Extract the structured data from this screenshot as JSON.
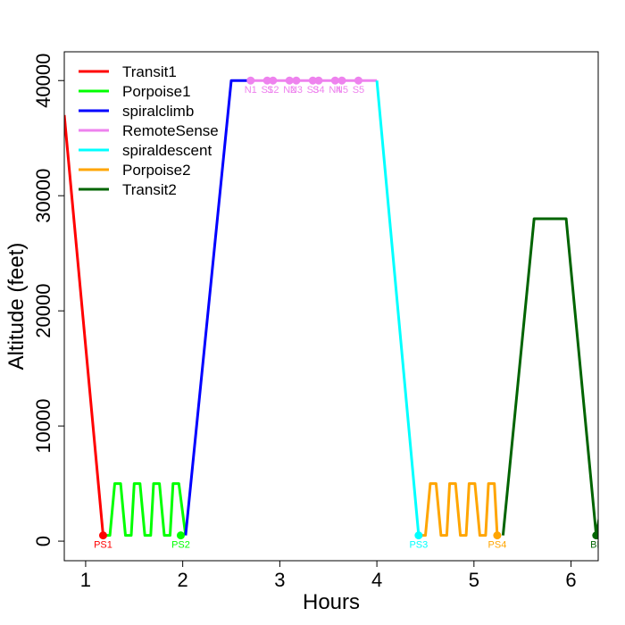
{
  "chart_data": {
    "type": "line",
    "title": "",
    "xlabel": "Hours",
    "ylabel": "Altitude (feet)",
    "xlim": [
      0.78,
      6.28
    ],
    "ylim": [
      -1700,
      42500
    ],
    "xticks": [
      1,
      2,
      3,
      4,
      5,
      6
    ],
    "xtick_labels": [
      "1",
      "2",
      "3",
      "4",
      "5",
      "6"
    ],
    "yticks": [
      0,
      10000,
      20000,
      30000,
      40000
    ],
    "ytick_labels": [
      "0",
      "10000",
      "20000",
      "30000",
      "40000"
    ],
    "legend_position": "top-left",
    "series": [
      {
        "name": "Transit1",
        "color": "#ff0000",
        "x": [
          0.78,
          1.18
        ],
        "y": [
          37000,
          500
        ]
      },
      {
        "name": "Porpoise1",
        "color": "#00ff00",
        "x": [
          1.18,
          1.25,
          1.3,
          1.36,
          1.41,
          1.47,
          1.5,
          1.56,
          1.61,
          1.67,
          1.7,
          1.76,
          1.81,
          1.87,
          1.9,
          1.96,
          2.03
        ],
        "y": [
          500,
          500,
          5000,
          5000,
          500,
          500,
          5000,
          5000,
          500,
          500,
          5000,
          5000,
          500,
          500,
          5000,
          5000,
          500
        ]
      },
      {
        "name": "spiralclimb",
        "color": "#0000ff",
        "x": [
          2.03,
          2.5,
          2.7
        ],
        "y": [
          500,
          40000,
          40000
        ]
      },
      {
        "name": "RemoteSense",
        "color": "#ee82ee",
        "x": [
          2.7,
          4.0
        ],
        "y": [
          40000,
          40000
        ]
      },
      {
        "name": "spiraldescent",
        "color": "#00ffff",
        "x": [
          4.0,
          4.43
        ],
        "y": [
          40000,
          500
        ]
      },
      {
        "name": "Porpoise2",
        "color": "#ffa500",
        "x": [
          4.43,
          4.5,
          4.55,
          4.61,
          4.66,
          4.72,
          4.75,
          4.81,
          4.86,
          4.92,
          4.95,
          5.01,
          5.06,
          5.12,
          5.15,
          5.21,
          5.24
        ],
        "y": [
          500,
          500,
          5000,
          5000,
          500,
          500,
          5000,
          5000,
          500,
          500,
          5000,
          5000,
          500,
          500,
          5000,
          5000,
          500
        ]
      },
      {
        "name": "Transit2",
        "color": "#006400",
        "x": [
          5.3,
          5.62,
          5.95,
          6.26,
          6.3
        ],
        "y": [
          500,
          28000,
          28000,
          500,
          2500
        ]
      }
    ],
    "waypoints": [
      {
        "label": "PS1",
        "x": 1.18,
        "y": 500,
        "color": "#ff0000",
        "label_color": "#ff0000"
      },
      {
        "label": "PS2",
        "x": 1.98,
        "y": 500,
        "color": "#00ff00",
        "label_color": "#00ff00"
      },
      {
        "label": "PS3",
        "x": 4.43,
        "y": 500,
        "color": "#00ffff",
        "label_color": "#00ffff"
      },
      {
        "label": "PS4",
        "x": 5.24,
        "y": 500,
        "color": "#ffa500",
        "label_color": "#ffa500"
      },
      {
        "label": "BL",
        "x": 6.26,
        "y": 500,
        "color": "#006400",
        "label_color": "#006400"
      },
      {
        "label": "N1",
        "x": 2.7,
        "y": 40000,
        "color": "#ee82ee",
        "label_color": "#ee82ee"
      },
      {
        "label": "S1",
        "x": 2.87,
        "y": 40000,
        "color": "#ee82ee",
        "label_color": "#ee82ee"
      },
      {
        "label": "S2",
        "x": 2.93,
        "y": 40000,
        "color": "#ee82ee",
        "label_color": "#ee82ee"
      },
      {
        "label": "N2",
        "x": 3.1,
        "y": 40000,
        "color": "#ee82ee",
        "label_color": "#ee82ee"
      },
      {
        "label": "N3",
        "x": 3.17,
        "y": 40000,
        "color": "#ee82ee",
        "label_color": "#ee82ee"
      },
      {
        "label": "S3",
        "x": 3.34,
        "y": 40000,
        "color": "#ee82ee",
        "label_color": "#ee82ee"
      },
      {
        "label": "S4",
        "x": 3.4,
        "y": 40000,
        "color": "#ee82ee",
        "label_color": "#ee82ee"
      },
      {
        "label": "N4",
        "x": 3.57,
        "y": 40000,
        "color": "#ee82ee",
        "label_color": "#ee82ee"
      },
      {
        "label": "N5",
        "x": 3.64,
        "y": 40000,
        "color": "#ee82ee",
        "label_color": "#ee82ee"
      },
      {
        "label": "S5",
        "x": 3.81,
        "y": 40000,
        "color": "#ee82ee",
        "label_color": "#ee82ee"
      }
    ]
  }
}
